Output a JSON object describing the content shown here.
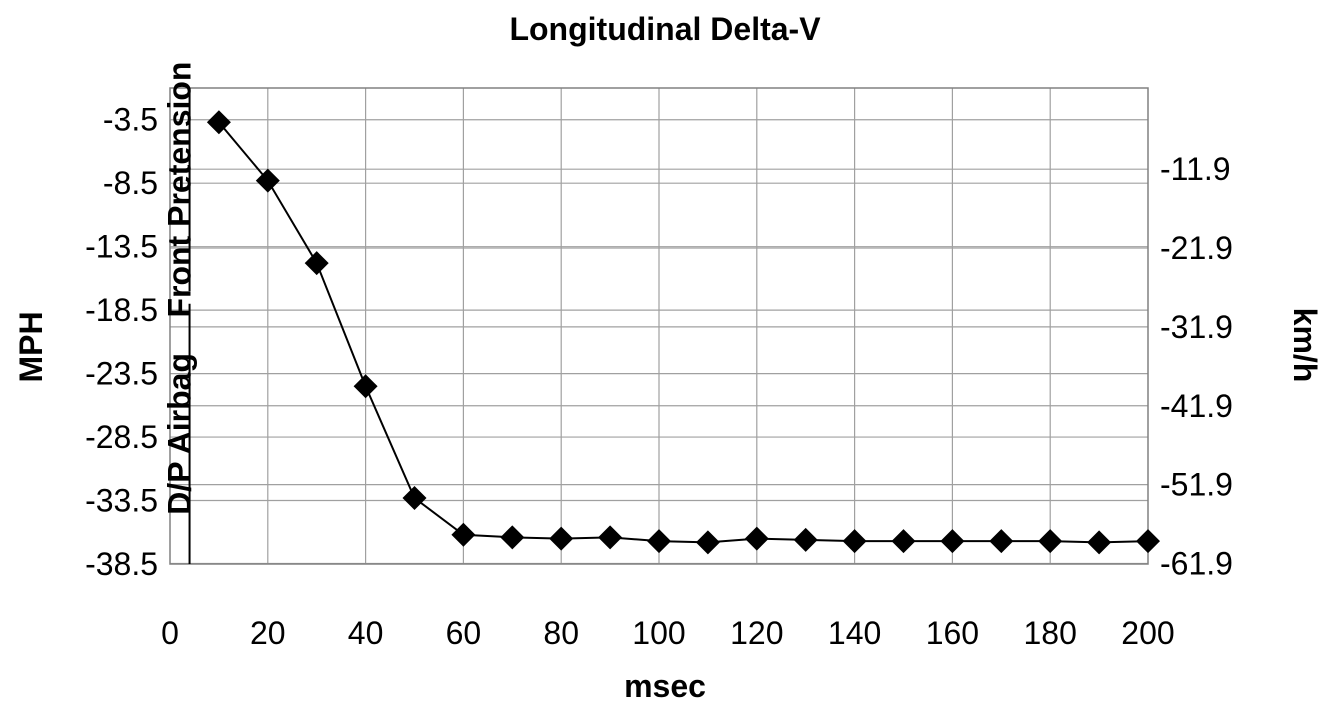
{
  "chart_data": {
    "type": "line",
    "title": "Longitudinal Delta-V",
    "xlabel": "msec",
    "ylabel": "MPH",
    "y2label": "km/h",
    "xlim": [
      0,
      200
    ],
    "ylim": [
      -38.5,
      -1
    ],
    "x_ticks": [
      "0",
      "20",
      "40",
      "60",
      "80",
      "100",
      "120",
      "140",
      "160",
      "180",
      "200"
    ],
    "y_ticks": [
      "-3.5",
      "-8.5",
      "-13.5",
      "-18.5",
      "-23.5",
      "-28.5",
      "-33.5",
      "-38.5"
    ],
    "y2_ticks": [
      "-11.9",
      "-21.9",
      "-31.9",
      "-41.9",
      "-51.9",
      "-61.9"
    ],
    "grid": true,
    "marker": "diamond",
    "color": "#000000",
    "events": [
      {
        "label": "Front Pretension",
        "x": 4,
        "y_range": [
          -17,
          -1
        ]
      },
      {
        "label": "D/P Airbag",
        "x": 4,
        "y_range": [
          -38.5,
          -18
        ]
      }
    ],
    "series": [
      {
        "x": [
          10,
          20,
          30,
          40,
          50,
          60,
          70,
          80,
          90,
          100,
          110,
          120,
          130,
          140,
          150,
          160,
          170,
          180,
          190,
          200
        ],
        "values": [
          -3.7,
          -8.3,
          -14.8,
          -24.5,
          -33.3,
          -36.2,
          -36.4,
          -36.5,
          -36.4,
          -36.7,
          -36.8,
          -36.5,
          -36.6,
          -36.7,
          -36.7,
          -36.7,
          -36.7,
          -36.7,
          -36.8,
          -36.7
        ]
      }
    ]
  }
}
